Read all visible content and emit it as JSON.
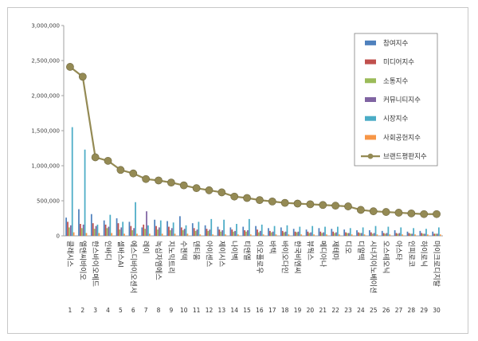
{
  "chart_data": {
    "type": "bar",
    "ylim": [
      0,
      3000000
    ],
    "yticks": [
      "0",
      "500,000",
      "1,000,000",
      "1,500,000",
      "2,000,000",
      "2,500,000",
      "3,000,000"
    ],
    "ytick_values": [
      0,
      500000,
      1000000,
      1500000,
      2000000,
      2500000,
      3000000
    ],
    "grid": false,
    "legend_position": "top-right",
    "x": [
      "1",
      "2",
      "3",
      "4",
      "5",
      "6",
      "7",
      "8",
      "9",
      "10",
      "11",
      "12",
      "13",
      "14",
      "15",
      "16",
      "17",
      "18",
      "19",
      "20",
      "21",
      "22",
      "23",
      "24",
      "25",
      "26",
      "27",
      "28",
      "29",
      "30"
    ],
    "categories": [
      "클래시스",
      "엘앤씨바이오",
      "한스바이오메드",
      "인바디",
      "셀바스AI",
      "에스디바이오센서",
      "레이",
      "녹십자엠에스",
      "지노믹트리",
      "수젠텍",
      "덴티움",
      "아이센스",
      "제이시스",
      "나이벡",
      "티앤엘",
      "이오플로우",
      "바텍",
      "바이오다인",
      "한국비엔씨",
      "뷰웍스",
      "메디아나",
      "제테마",
      "디오",
      "디알텍",
      "시너지이노베이션",
      "오스테오닉",
      "아스타",
      "인피로코",
      "하이로닉",
      "마이크로디지탈"
    ],
    "series": [
      {
        "name": "참여지수",
        "color": "#4f81bd",
        "values": [
          260000,
          380000,
          310000,
          220000,
          250000,
          200000,
          120000,
          230000,
          210000,
          280000,
          180000,
          150000,
          130000,
          120000,
          130000,
          140000,
          110000,
          120000,
          100000,
          90000,
          110000,
          100000,
          90000,
          80000,
          80000,
          70000,
          80000,
          60000,
          70000,
          60000
        ]
      },
      {
        "name": "미디어지수",
        "color": "#c0504d",
        "values": [
          200000,
          170000,
          180000,
          160000,
          180000,
          140000,
          160000,
          140000,
          130000,
          120000,
          110000,
          100000,
          90000,
          90000,
          80000,
          90000,
          70000,
          70000,
          60000,
          60000,
          60000,
          60000,
          50000,
          50000,
          50000,
          40000,
          40000,
          40000,
          40000,
          30000
        ]
      },
      {
        "name": "소통지수",
        "color": "#9bbb59",
        "values": [
          120000,
          110000,
          100000,
          110000,
          90000,
          80000,
          100000,
          90000,
          80000,
          80000,
          70000,
          70000,
          60000,
          60000,
          60000,
          50000,
          50000,
          50000,
          50000,
          40000,
          40000,
          40000,
          40000,
          40000,
          30000,
          30000,
          30000,
          30000,
          30000,
          30000
        ]
      },
      {
        "name": "커뮤니티지수",
        "color": "#8064a2",
        "values": [
          150000,
          160000,
          140000,
          130000,
          120000,
          110000,
          350000,
          120000,
          110000,
          100000,
          90000,
          90000,
          80000,
          70000,
          80000,
          70000,
          60000,
          60000,
          60000,
          50000,
          50000,
          50000,
          40000,
          40000,
          40000,
          40000,
          40000,
          30000,
          30000,
          30000
        ]
      },
      {
        "name": "시장지수",
        "color": "#4bacc6",
        "values": [
          1550000,
          1230000,
          160000,
          300000,
          200000,
          480000,
          150000,
          220000,
          190000,
          150000,
          200000,
          240000,
          230000,
          170000,
          240000,
          160000,
          140000,
          150000,
          130000,
          140000,
          130000,
          130000,
          110000,
          120000,
          140000,
          130000,
          120000,
          110000,
          100000,
          120000
        ]
      },
      {
        "name": "사회공헌지수",
        "color": "#f79646",
        "values": [
          50000,
          40000,
          40000,
          40000,
          30000,
          30000,
          30000,
          30000,
          30000,
          30000,
          20000,
          20000,
          20000,
          20000,
          20000,
          20000,
          20000,
          20000,
          20000,
          20000,
          20000,
          20000,
          20000,
          20000,
          20000,
          20000,
          20000,
          20000,
          20000,
          20000
        ]
      },
      {
        "name": "브랜드평판지수",
        "color": "#948a54",
        "type": "line",
        "values": [
          2410000,
          2270000,
          1120000,
          1070000,
          940000,
          890000,
          810000,
          790000,
          760000,
          720000,
          680000,
          650000,
          620000,
          560000,
          540000,
          510000,
          490000,
          470000,
          460000,
          450000,
          440000,
          430000,
          420000,
          370000,
          350000,
          340000,
          330000,
          320000,
          310000,
          310000
        ]
      }
    ]
  }
}
